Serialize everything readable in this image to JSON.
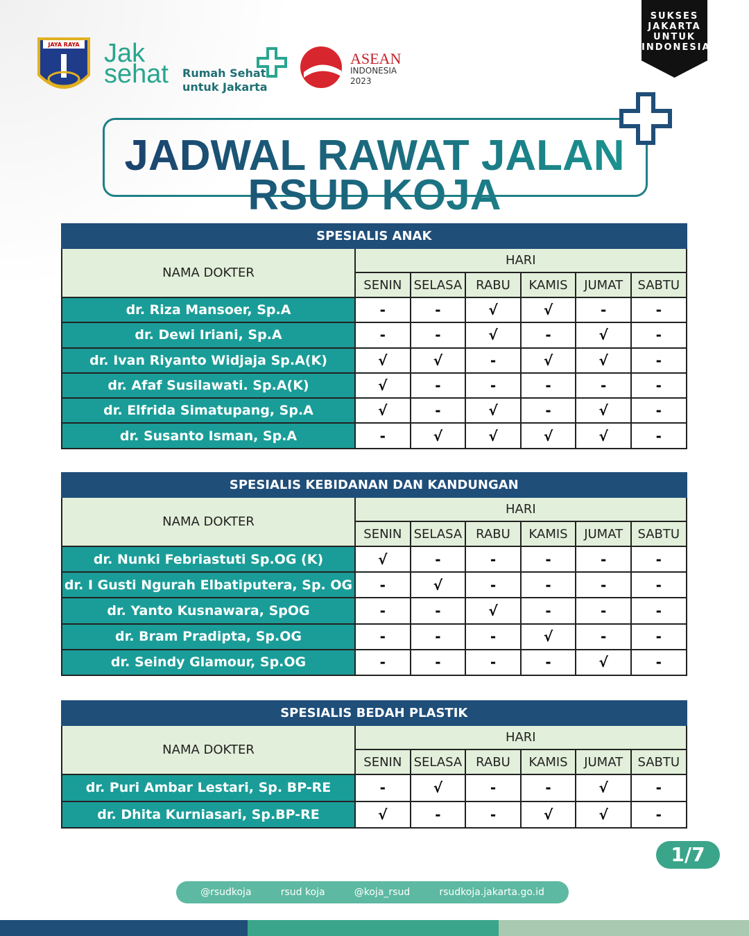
{
  "header": {
    "emblem": "JAYA RAYA",
    "brand_top": "Jak",
    "brand_bottom": "sehat",
    "tagline_1": "Rumah Sehat",
    "tagline_2": "untuk Jakarta",
    "asean": "ASEAN",
    "asean_country": "INDONESIA",
    "asean_year": "2023",
    "badge": [
      "SUKSES",
      "JAKARTA",
      "UNTUK",
      "INDONESIA"
    ]
  },
  "title": {
    "line_1": "JADWAL RAWAT JALAN",
    "line_2": "RSUD KOJA"
  },
  "sections": [
    {
      "title": "SPESIALIS ANAK",
      "name_header": "NAMA DOKTER",
      "group_header": "HARI",
      "days": [
        "SENIN",
        "SELASA",
        "RABU",
        "KAMIS",
        "JUMAT",
        "SABTU"
      ],
      "rows": [
        {
          "name": "dr. Riza Mansoer, Sp.A",
          "marks": [
            "-",
            "-",
            "√",
            "√",
            "-",
            "-"
          ]
        },
        {
          "name": "dr. Dewi Iriani, Sp.A",
          "marks": [
            "-",
            "-",
            "√",
            "-",
            "√",
            "-"
          ]
        },
        {
          "name": "dr. Ivan Riyanto Widjaja Sp.A(K)",
          "marks": [
            "√",
            "√",
            "-",
            "√",
            "√",
            "-"
          ]
        },
        {
          "name": "dr. Afaf Susilawati. Sp.A(K)",
          "marks": [
            "√",
            "-",
            "-",
            "-",
            "-",
            "-"
          ]
        },
        {
          "name": "dr. Elfrida Simatupang, Sp.A",
          "marks": [
            "√",
            "-",
            "√",
            "-",
            "√",
            "-"
          ]
        },
        {
          "name": "dr. Susanto Isman, Sp.A",
          "marks": [
            "-",
            "√",
            "√",
            "√",
            "√",
            "-"
          ]
        }
      ]
    },
    {
      "title": "SPESIALIS KEBIDANAN DAN KANDUNGAN",
      "name_header": "NAMA DOKTER",
      "group_header": "HARI",
      "days": [
        "SENIN",
        "SELASA",
        "RABU",
        "KAMIS",
        "JUMAT",
        "SABTU"
      ],
      "rows": [
        {
          "name": "dr. Nunki Febriastuti Sp.OG (K)",
          "marks": [
            "√",
            "-",
            "-",
            "-",
            "-",
            "-"
          ]
        },
        {
          "name": "dr. I Gusti Ngurah Elbatiputera, Sp. OG",
          "marks": [
            "-",
            "√",
            "-",
            "-",
            "-",
            "-"
          ]
        },
        {
          "name": "dr. Yanto Kusnawara, SpOG",
          "marks": [
            "-",
            "-",
            "√",
            "-",
            "-",
            "-"
          ]
        },
        {
          "name": "dr. Bram Pradipta, Sp.OG",
          "marks": [
            "-",
            "-",
            "-",
            "√",
            "-",
            "-"
          ]
        },
        {
          "name": "dr. Seindy Glamour, Sp.OG",
          "marks": [
            "-",
            "-",
            "-",
            "-",
            "√",
            "-"
          ]
        }
      ]
    },
    {
      "title": "SPESIALIS BEDAH PLASTIK",
      "name_header": "NAMA DOKTER",
      "group_header": "HARI",
      "days": [
        "SENIN",
        "SELASA",
        "RABU",
        "KAMIS",
        "JUMAT",
        "SABTU"
      ],
      "rows": [
        {
          "name": "dr. Puri Ambar Lestari, Sp. BP-RE",
          "marks": [
            "-",
            "√",
            "-",
            "-",
            "√",
            "-"
          ]
        },
        {
          "name": "dr. Dhita Kurniasari, Sp.BP-RE",
          "marks": [
            "√",
            "-",
            "-",
            "√",
            "√",
            "-"
          ]
        }
      ]
    }
  ],
  "page": "1/7",
  "footer": [
    "@rsudkoja",
    "rsud koja",
    "@koja_rsud",
    "rsudkoja.jakarta.go.id"
  ]
}
